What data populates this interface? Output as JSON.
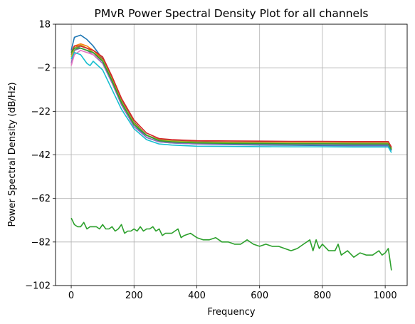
{
  "chart_data": {
    "type": "line",
    "title": "PMvR Power Spectral Density Plot for all channels",
    "xlabel": "Frequency",
    "ylabel": "Power Spectral Density (dB/Hz)",
    "xlim": [
      -50,
      1070
    ],
    "ylim": [
      -102,
      18
    ],
    "x_ticks": [
      0,
      200,
      400,
      600,
      800,
      1000
    ],
    "y_ticks": [
      18,
      -2,
      -22,
      -42,
      -62,
      -82,
      -102
    ],
    "grid": true,
    "legend": "none",
    "series": [
      {
        "color": "#1f77b4",
        "values": [
          [
            0,
            6
          ],
          [
            10,
            12
          ],
          [
            30,
            13
          ],
          [
            50,
            11
          ],
          [
            70,
            8
          ],
          [
            100,
            2
          ],
          [
            130,
            -8
          ],
          [
            160,
            -18
          ],
          [
            200,
            -28
          ],
          [
            240,
            -34
          ],
          [
            280,
            -36
          ],
          [
            320,
            -36.5
          ],
          [
            400,
            -37
          ],
          [
            500,
            -37.3
          ],
          [
            600,
            -37.5
          ],
          [
            700,
            -37.6
          ],
          [
            800,
            -37.7
          ],
          [
            900,
            -37.8
          ],
          [
            1010,
            -37.8
          ],
          [
            1020,
            -40
          ]
        ]
      },
      {
        "color": "#ff7f0e",
        "values": [
          [
            0,
            5
          ],
          [
            10,
            8
          ],
          [
            30,
            9
          ],
          [
            50,
            8
          ],
          [
            70,
            6
          ],
          [
            100,
            2
          ],
          [
            130,
            -7
          ],
          [
            160,
            -17
          ],
          [
            200,
            -27
          ],
          [
            240,
            -33
          ],
          [
            280,
            -35
          ],
          [
            320,
            -35.5
          ],
          [
            400,
            -36
          ],
          [
            500,
            -36.2
          ],
          [
            600,
            -36.3
          ],
          [
            700,
            -36.4
          ],
          [
            800,
            -36.4
          ],
          [
            900,
            -36.5
          ],
          [
            1010,
            -36.5
          ],
          [
            1020,
            -39
          ]
        ]
      },
      {
        "color": "#9467bd",
        "values": [
          [
            0,
            0
          ],
          [
            10,
            6
          ],
          [
            30,
            7
          ],
          [
            50,
            6
          ],
          [
            70,
            4
          ],
          [
            100,
            0
          ],
          [
            130,
            -9
          ],
          [
            160,
            -19
          ],
          [
            200,
            -29
          ],
          [
            240,
            -34
          ],
          [
            280,
            -36
          ],
          [
            320,
            -36.5
          ],
          [
            400,
            -37
          ],
          [
            500,
            -37.1
          ],
          [
            600,
            -37.2
          ],
          [
            700,
            -37.3
          ],
          [
            800,
            -37.4
          ],
          [
            900,
            -37.5
          ],
          [
            1010,
            -37.5
          ],
          [
            1020,
            -39.5
          ]
        ]
      },
      {
        "color": "#e377c2",
        "values": [
          [
            0,
            -1
          ],
          [
            10,
            4
          ],
          [
            30,
            6
          ],
          [
            50,
            5
          ],
          [
            70,
            4
          ],
          [
            100,
            1
          ],
          [
            130,
            -8
          ],
          [
            160,
            -18
          ],
          [
            200,
            -28
          ],
          [
            240,
            -33
          ],
          [
            280,
            -35
          ],
          [
            320,
            -35.5
          ],
          [
            400,
            -36
          ],
          [
            500,
            -36.1
          ],
          [
            600,
            -36.2
          ],
          [
            700,
            -36.3
          ],
          [
            800,
            -36.3
          ],
          [
            900,
            -36.4
          ],
          [
            1010,
            -36.4
          ],
          [
            1020,
            -39
          ]
        ]
      },
      {
        "color": "#8c564b",
        "values": [
          [
            0,
            4
          ],
          [
            10,
            7
          ],
          [
            30,
            8
          ],
          [
            50,
            7
          ],
          [
            70,
            5
          ],
          [
            100,
            2
          ],
          [
            130,
            -7
          ],
          [
            160,
            -17
          ],
          [
            200,
            -27
          ],
          [
            240,
            -33
          ],
          [
            280,
            -35
          ],
          [
            320,
            -35.5
          ],
          [
            400,
            -36
          ],
          [
            500,
            -36.2
          ],
          [
            600,
            -36.3
          ],
          [
            700,
            -36.4
          ],
          [
            800,
            -36.4
          ],
          [
            900,
            -36.5
          ],
          [
            1010,
            -36.5
          ],
          [
            1020,
            -39
          ]
        ]
      },
      {
        "color": "#7f7f7f",
        "values": [
          [
            0,
            3
          ],
          [
            10,
            6
          ],
          [
            30,
            8
          ],
          [
            50,
            7
          ],
          [
            70,
            5
          ],
          [
            100,
            1
          ],
          [
            130,
            -8
          ],
          [
            160,
            -18
          ],
          [
            200,
            -28
          ],
          [
            240,
            -33
          ],
          [
            280,
            -35.5
          ],
          [
            320,
            -36
          ],
          [
            400,
            -36.5
          ],
          [
            500,
            -36.6
          ],
          [
            600,
            -36.7
          ],
          [
            700,
            -36.8
          ],
          [
            800,
            -36.8
          ],
          [
            900,
            -36.9
          ],
          [
            1010,
            -36.9
          ],
          [
            1020,
            -39.5
          ]
        ]
      },
      {
        "color": "#bcbd22",
        "values": [
          [
            0,
            3
          ],
          [
            10,
            7
          ],
          [
            30,
            8.5
          ],
          [
            50,
            7
          ],
          [
            70,
            5
          ],
          [
            100,
            1.5
          ],
          [
            130,
            -7.5
          ],
          [
            160,
            -17.5
          ],
          [
            200,
            -27.5
          ],
          [
            240,
            -33
          ],
          [
            280,
            -35.2
          ],
          [
            320,
            -35.7
          ],
          [
            400,
            -36.2
          ],
          [
            500,
            -36.3
          ],
          [
            600,
            -36.4
          ],
          [
            700,
            -36.5
          ],
          [
            800,
            -36.5
          ],
          [
            900,
            -36.6
          ],
          [
            1010,
            -36.6
          ],
          [
            1020,
            -39.2
          ]
        ]
      },
      {
        "color": "#d62728",
        "values": [
          [
            0,
            5
          ],
          [
            10,
            8
          ],
          [
            30,
            8
          ],
          [
            50,
            7
          ],
          [
            70,
            6
          ],
          [
            100,
            3
          ],
          [
            130,
            -6
          ],
          [
            160,
            -16
          ],
          [
            200,
            -26
          ],
          [
            240,
            -32
          ],
          [
            280,
            -34.5
          ],
          [
            320,
            -35
          ],
          [
            400,
            -35.5
          ],
          [
            500,
            -35.6
          ],
          [
            600,
            -35.7
          ],
          [
            700,
            -35.8
          ],
          [
            800,
            -35.8
          ],
          [
            900,
            -35.9
          ],
          [
            1010,
            -35.9
          ],
          [
            1020,
            -38.5
          ]
        ]
      },
      {
        "color": "#17becf",
        "values": [
          [
            0,
            2
          ],
          [
            10,
            5
          ],
          [
            30,
            4
          ],
          [
            50,
            0
          ],
          [
            60,
            -1
          ],
          [
            70,
            1
          ],
          [
            100,
            -3
          ],
          [
            130,
            -12
          ],
          [
            160,
            -21
          ],
          [
            200,
            -30
          ],
          [
            240,
            -35
          ],
          [
            280,
            -37
          ],
          [
            320,
            -37.5
          ],
          [
            400,
            -38
          ],
          [
            500,
            -38.1
          ],
          [
            600,
            -38.2
          ],
          [
            700,
            -38.3
          ],
          [
            800,
            -38.3
          ],
          [
            900,
            -38.4
          ],
          [
            1010,
            -38.4
          ],
          [
            1020,
            -41
          ]
        ]
      },
      {
        "color": "#2ca02c",
        "values": [
          [
            0,
            5
          ],
          [
            10,
            7
          ],
          [
            30,
            7
          ],
          [
            50,
            6
          ],
          [
            70,
            5
          ],
          [
            100,
            1
          ],
          [
            130,
            -8
          ],
          [
            160,
            -18
          ],
          [
            200,
            -28
          ],
          [
            240,
            -33
          ],
          [
            280,
            -35.5
          ],
          [
            320,
            -36
          ],
          [
            400,
            -36.5
          ],
          [
            500,
            -36.7
          ],
          [
            600,
            -36.8
          ],
          [
            700,
            -36.9
          ],
          [
            800,
            -36.9
          ],
          [
            900,
            -37
          ],
          [
            1010,
            -37
          ],
          [
            1020,
            -39.5
          ]
        ]
      },
      {
        "color": "#2ca02c",
        "values": [
          [
            0,
            -71
          ],
          [
            10,
            -74
          ],
          [
            20,
            -75
          ],
          [
            30,
            -75
          ],
          [
            40,
            -73
          ],
          [
            50,
            -76
          ],
          [
            60,
            -75
          ],
          [
            80,
            -75
          ],
          [
            90,
            -76
          ],
          [
            100,
            -74
          ],
          [
            110,
            -76
          ],
          [
            120,
            -76
          ],
          [
            130,
            -75
          ],
          [
            140,
            -77
          ],
          [
            150,
            -76
          ],
          [
            160,
            -74
          ],
          [
            170,
            -78
          ],
          [
            180,
            -77
          ],
          [
            190,
            -77
          ],
          [
            200,
            -76
          ],
          [
            210,
            -77
          ],
          [
            220,
            -75
          ],
          [
            230,
            -77
          ],
          [
            240,
            -76
          ],
          [
            250,
            -76
          ],
          [
            260,
            -75
          ],
          [
            270,
            -77
          ],
          [
            280,
            -76
          ],
          [
            290,
            -79
          ],
          [
            300,
            -78
          ],
          [
            320,
            -78
          ],
          [
            340,
            -76
          ],
          [
            350,
            -80
          ],
          [
            360,
            -79
          ],
          [
            380,
            -78
          ],
          [
            400,
            -80
          ],
          [
            420,
            -81
          ],
          [
            440,
            -81
          ],
          [
            460,
            -80
          ],
          [
            480,
            -82
          ],
          [
            500,
            -82
          ],
          [
            520,
            -83
          ],
          [
            540,
            -83
          ],
          [
            560,
            -81
          ],
          [
            580,
            -83
          ],
          [
            600,
            -84
          ],
          [
            620,
            -83
          ],
          [
            640,
            -84
          ],
          [
            660,
            -84
          ],
          [
            680,
            -85
          ],
          [
            700,
            -86
          ],
          [
            720,
            -85
          ],
          [
            740,
            -83
          ],
          [
            760,
            -81
          ],
          [
            770,
            -86
          ],
          [
            780,
            -81
          ],
          [
            790,
            -85
          ],
          [
            800,
            -83
          ],
          [
            820,
            -86
          ],
          [
            840,
            -86
          ],
          [
            850,
            -83
          ],
          [
            860,
            -88
          ],
          [
            880,
            -86
          ],
          [
            900,
            -89
          ],
          [
            920,
            -87
          ],
          [
            940,
            -88
          ],
          [
            960,
            -88
          ],
          [
            980,
            -86
          ],
          [
            990,
            -88
          ],
          [
            1000,
            -87
          ],
          [
            1010,
            -85
          ],
          [
            1020,
            -95
          ]
        ]
      }
    ]
  }
}
